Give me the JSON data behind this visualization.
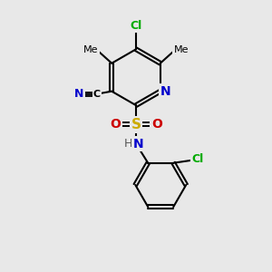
{
  "bg_color": "#e8e8e8",
  "bond_color": "#000000",
  "atom_colors": {
    "C": "#000000",
    "N": "#0000cc",
    "O": "#cc0000",
    "S": "#ccaa00",
    "Cl": "#00aa00",
    "H": "#555555"
  },
  "figsize": [
    3.0,
    3.0
  ],
  "dpi": 100,
  "xlim": [
    0,
    10
  ],
  "ylim": [
    0,
    10
  ]
}
